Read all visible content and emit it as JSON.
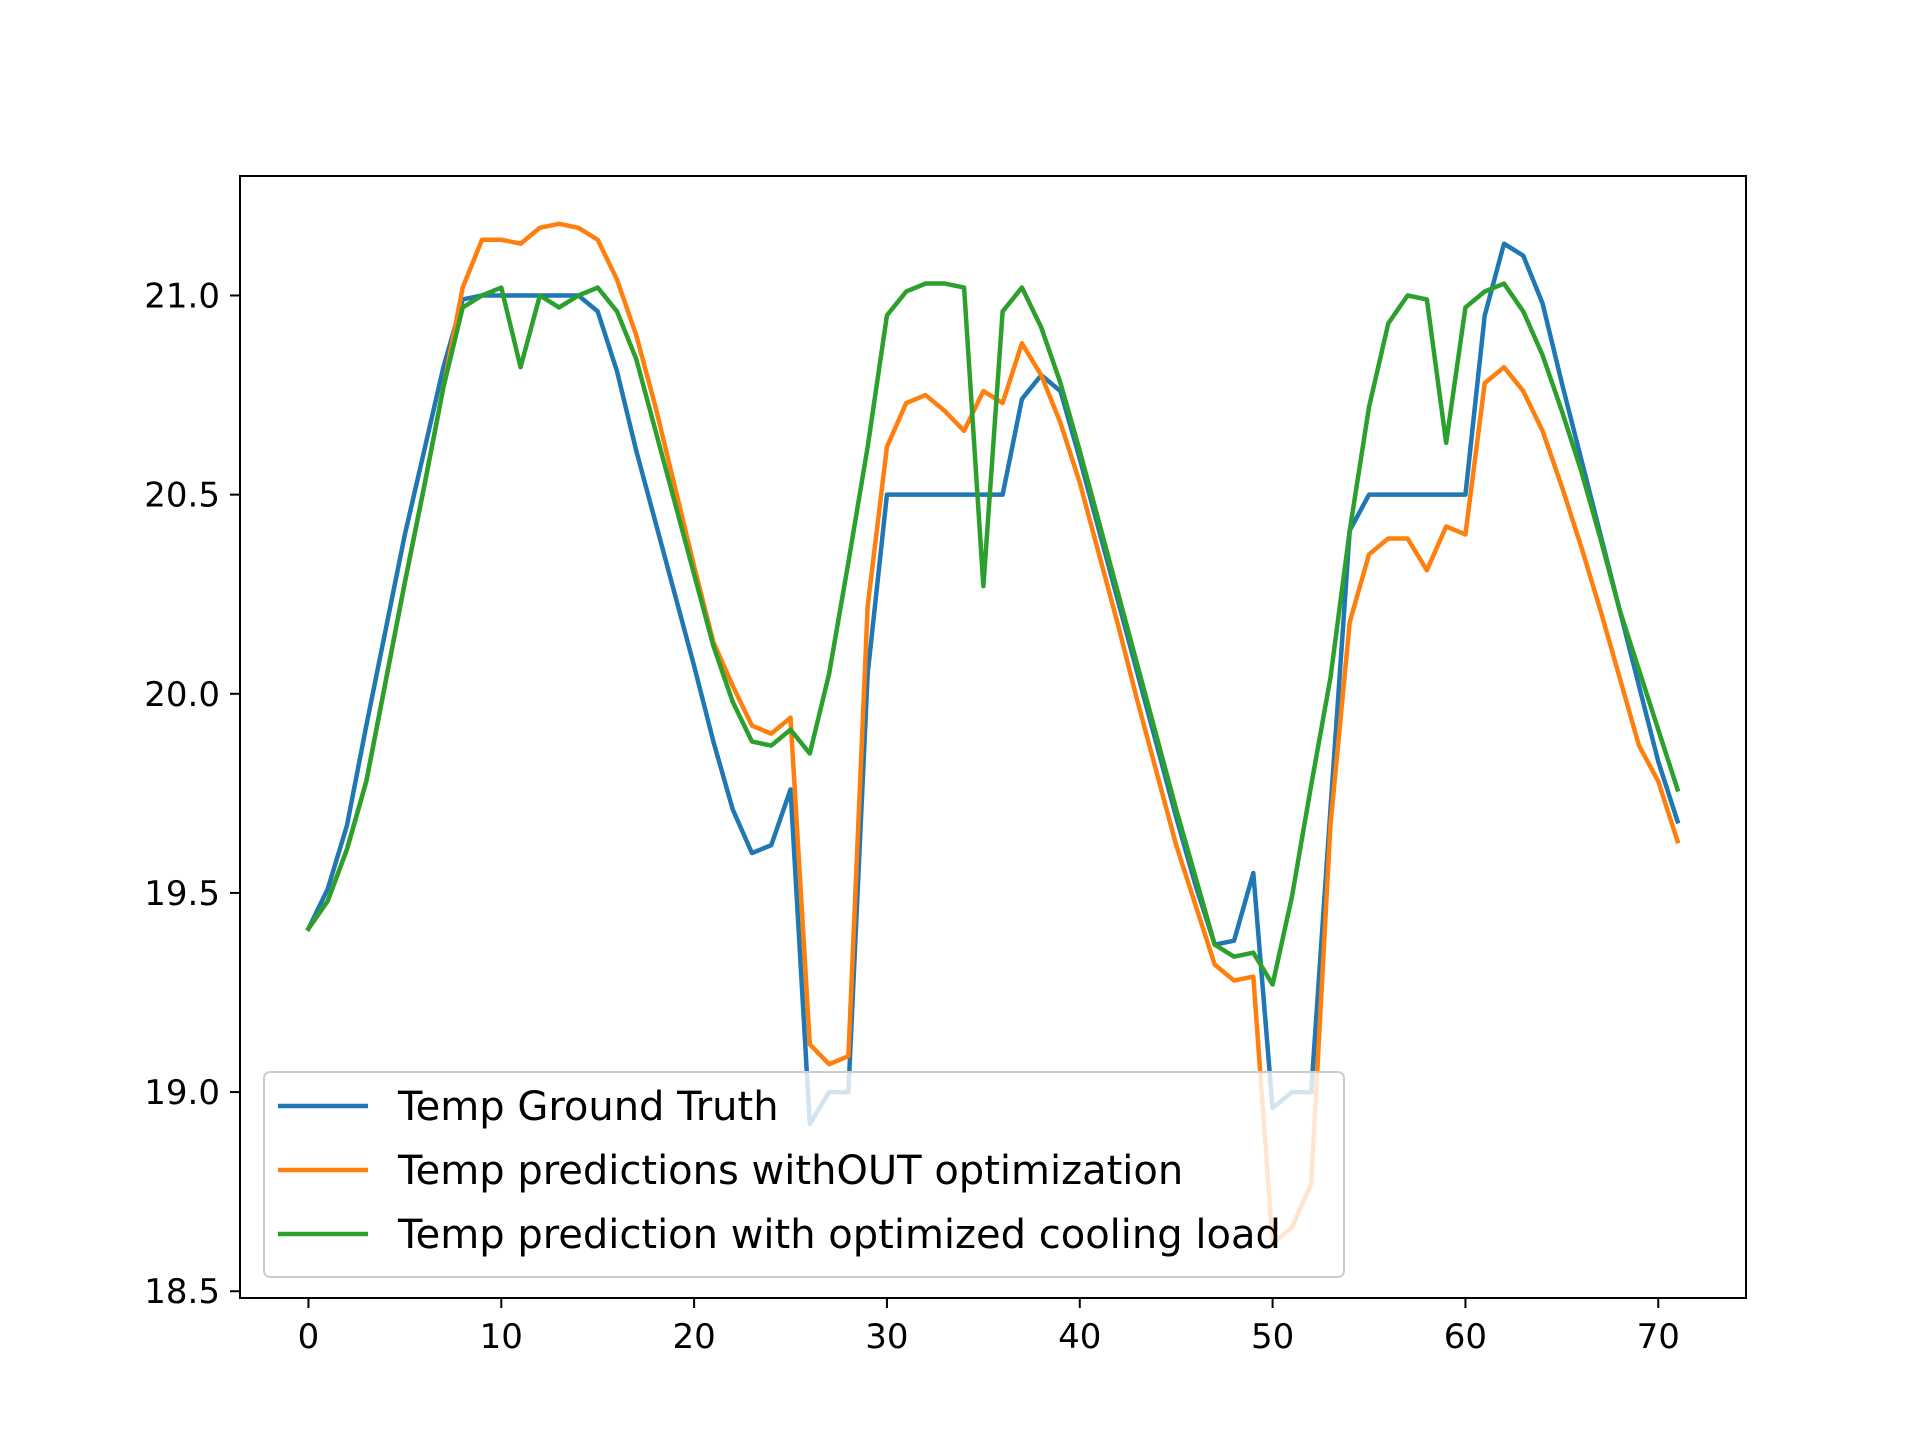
{
  "chart_data": {
    "type": "line",
    "title": "",
    "xlabel": "",
    "ylabel": "",
    "xlim": [
      -3.55,
      74.55
    ],
    "ylim": [
      18.483,
      21.3
    ],
    "xticks": [
      0,
      10,
      20,
      30,
      40,
      50,
      60,
      70
    ],
    "yticks": [
      18.5,
      19.0,
      19.5,
      20.0,
      20.5,
      21.0
    ],
    "xtick_labels": [
      "0",
      "10",
      "20",
      "30",
      "40",
      "50",
      "60",
      "70"
    ],
    "ytick_labels": [
      "18.5",
      "19.0",
      "19.5",
      "20.0",
      "20.5",
      "21.0"
    ],
    "grid": false,
    "legend_position": "lower-left",
    "series": [
      {
        "name": "Temp Ground Truth",
        "color": "#1f77b4",
        "values": [
          19.41,
          19.51,
          19.67,
          19.92,
          20.16,
          20.4,
          20.61,
          20.82,
          20.99,
          21.0,
          21.0,
          21.0,
          21.0,
          21.0,
          21.0,
          20.96,
          20.81,
          20.61,
          20.43,
          20.25,
          20.07,
          19.88,
          19.71,
          19.6,
          19.62,
          19.76,
          18.92,
          19.0,
          19.0,
          20.05,
          20.5,
          20.5,
          20.5,
          20.5,
          20.5,
          20.5,
          20.5,
          20.74,
          20.8,
          20.76,
          20.59,
          20.41,
          20.23,
          20.05,
          19.87,
          19.69,
          19.52,
          19.37,
          19.38,
          19.55,
          18.96,
          19.0,
          19.0,
          19.71,
          20.41,
          20.5,
          20.5,
          20.5,
          20.5,
          20.5,
          20.5,
          20.95,
          21.13,
          21.1,
          20.98,
          20.78,
          20.59,
          20.4,
          20.21,
          20.02,
          19.83,
          19.68
        ]
      },
      {
        "name": "Temp predictions withOUT optimization",
        "color": "#ff7f0e",
        "values": [
          19.41,
          19.48,
          19.61,
          19.78,
          20.03,
          20.28,
          20.52,
          20.77,
          21.02,
          21.14,
          21.14,
          21.13,
          21.17,
          21.18,
          21.17,
          21.14,
          21.04,
          20.9,
          20.72,
          20.52,
          20.32,
          20.13,
          20.02,
          19.92,
          19.9,
          19.94,
          19.12,
          19.07,
          19.09,
          20.22,
          20.62,
          20.73,
          20.75,
          20.71,
          20.66,
          20.76,
          20.73,
          20.88,
          20.8,
          20.68,
          20.53,
          20.35,
          20.17,
          19.98,
          19.8,
          19.62,
          19.47,
          19.32,
          19.28,
          19.29,
          18.62,
          18.66,
          18.77,
          19.67,
          20.18,
          20.35,
          20.39,
          20.39,
          20.31,
          20.42,
          20.4,
          20.78,
          20.82,
          20.76,
          20.66,
          20.52,
          20.37,
          20.21,
          20.04,
          19.87,
          19.78,
          19.63
        ]
      },
      {
        "name": "Temp prediction with optimized cooling load",
        "color": "#2ca02c",
        "values": [
          19.41,
          19.48,
          19.61,
          19.78,
          20.03,
          20.28,
          20.52,
          20.77,
          20.97,
          21.0,
          21.02,
          20.82,
          21.0,
          20.97,
          21.0,
          21.02,
          20.96,
          20.84,
          20.66,
          20.48,
          20.3,
          20.12,
          19.98,
          19.88,
          19.87,
          19.91,
          19.85,
          20.05,
          20.33,
          20.62,
          20.95,
          21.01,
          21.03,
          21.03,
          21.02,
          20.27,
          20.96,
          21.02,
          20.92,
          20.78,
          20.61,
          20.43,
          20.25,
          20.07,
          19.89,
          19.71,
          19.54,
          19.37,
          19.34,
          19.35,
          19.27,
          19.49,
          19.77,
          20.04,
          20.41,
          20.72,
          20.93,
          21.0,
          20.99,
          20.63,
          20.97,
          21.01,
          21.03,
          20.96,
          20.85,
          20.71,
          20.56,
          20.39,
          20.21,
          20.06,
          19.91,
          19.76
        ]
      }
    ]
  }
}
